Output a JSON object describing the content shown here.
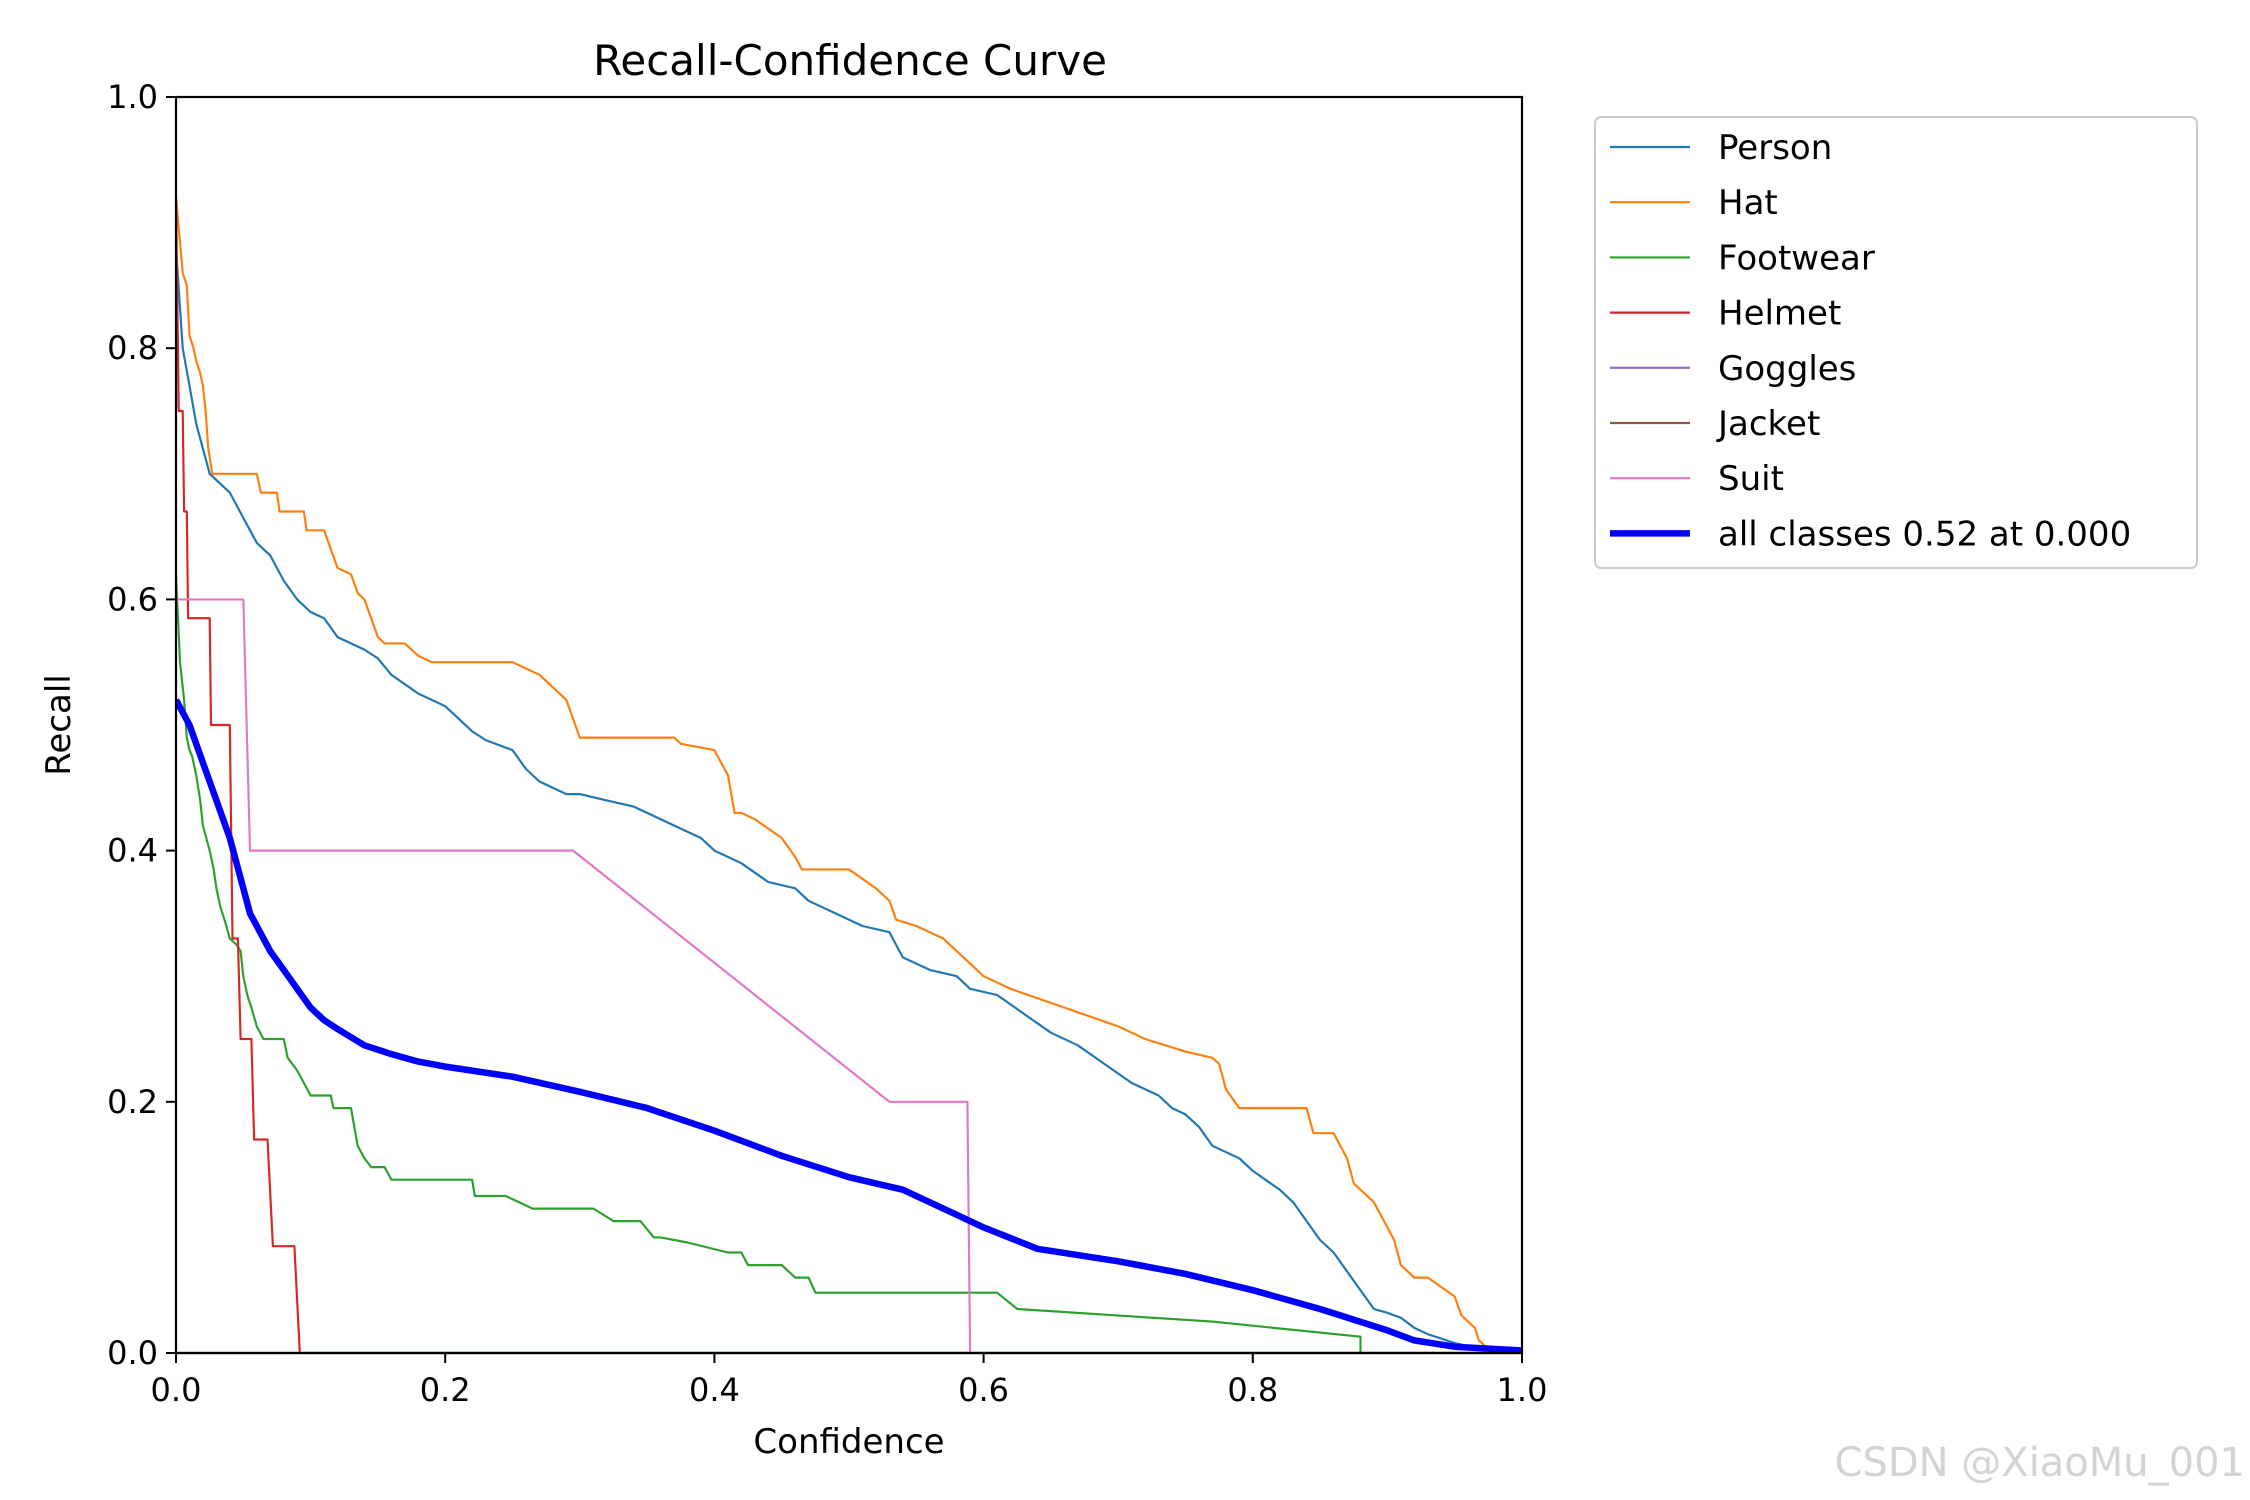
{
  "watermark": "CSDN @XiaoMu_001",
  "chart_data": {
    "type": "line",
    "title": "Recall-Confidence Curve",
    "xlabel": "Confidence",
    "ylabel": "Recall",
    "xlim": [
      0,
      1
    ],
    "ylim": [
      0,
      1
    ],
    "xticks": [
      "0.0",
      "0.2",
      "0.4",
      "0.6",
      "0.8",
      "1.0"
    ],
    "yticks": [
      "0.0",
      "0.2",
      "0.4",
      "0.6",
      "0.8",
      "1.0"
    ],
    "grid": false,
    "legend_position": "outside-right",
    "series": [
      {
        "name": "Person",
        "color": "#1f77b4",
        "width": 1.5,
        "points": [
          [
            0,
            0.88
          ],
          [
            0.005,
            0.8
          ],
          [
            0.01,
            0.77
          ],
          [
            0.015,
            0.74
          ],
          [
            0.02,
            0.72
          ],
          [
            0.025,
            0.7
          ],
          [
            0.03,
            0.695
          ],
          [
            0.04,
            0.685
          ],
          [
            0.05,
            0.665
          ],
          [
            0.06,
            0.645
          ],
          [
            0.07,
            0.635
          ],
          [
            0.08,
            0.615
          ],
          [
            0.09,
            0.6
          ],
          [
            0.1,
            0.59
          ],
          [
            0.11,
            0.585
          ],
          [
            0.12,
            0.57
          ],
          [
            0.14,
            0.56
          ],
          [
            0.15,
            0.553
          ],
          [
            0.16,
            0.54
          ],
          [
            0.18,
            0.525
          ],
          [
            0.2,
            0.515
          ],
          [
            0.21,
            0.505
          ],
          [
            0.22,
            0.495
          ],
          [
            0.23,
            0.488
          ],
          [
            0.25,
            0.48
          ],
          [
            0.26,
            0.465
          ],
          [
            0.27,
            0.455
          ],
          [
            0.29,
            0.445
          ],
          [
            0.3,
            0.445
          ],
          [
            0.32,
            0.44
          ],
          [
            0.34,
            0.435
          ],
          [
            0.35,
            0.43
          ],
          [
            0.37,
            0.42
          ],
          [
            0.39,
            0.41
          ],
          [
            0.4,
            0.4
          ],
          [
            0.42,
            0.39
          ],
          [
            0.44,
            0.375
          ],
          [
            0.46,
            0.37
          ],
          [
            0.47,
            0.36
          ],
          [
            0.49,
            0.35
          ],
          [
            0.51,
            0.34
          ],
          [
            0.53,
            0.335
          ],
          [
            0.54,
            0.315
          ],
          [
            0.56,
            0.305
          ],
          [
            0.58,
            0.3
          ],
          [
            0.59,
            0.29
          ],
          [
            0.61,
            0.285
          ],
          [
            0.63,
            0.27
          ],
          [
            0.65,
            0.255
          ],
          [
            0.67,
            0.245
          ],
          [
            0.69,
            0.23
          ],
          [
            0.71,
            0.215
          ],
          [
            0.73,
            0.205
          ],
          [
            0.74,
            0.195
          ],
          [
            0.75,
            0.19
          ],
          [
            0.76,
            0.18
          ],
          [
            0.77,
            0.165
          ],
          [
            0.79,
            0.155
          ],
          [
            0.8,
            0.145
          ],
          [
            0.82,
            0.13
          ],
          [
            0.83,
            0.12
          ],
          [
            0.84,
            0.105
          ],
          [
            0.85,
            0.09
          ],
          [
            0.86,
            0.08
          ],
          [
            0.87,
            0.065
          ],
          [
            0.88,
            0.05
          ],
          [
            0.89,
            0.035
          ],
          [
            0.9,
            0.032
          ],
          [
            0.91,
            0.028
          ],
          [
            0.92,
            0.02
          ],
          [
            0.93,
            0.015
          ],
          [
            0.95,
            0.008
          ],
          [
            0.97,
            0.003
          ],
          [
            1.0,
            0.0
          ]
        ]
      },
      {
        "name": "Hat",
        "color": "#ff7f0e",
        "width": 1.5,
        "points": [
          [
            0,
            0.92
          ],
          [
            0.005,
            0.86
          ],
          [
            0.008,
            0.85
          ],
          [
            0.01,
            0.81
          ],
          [
            0.013,
            0.8
          ],
          [
            0.015,
            0.79
          ],
          [
            0.018,
            0.78
          ],
          [
            0.02,
            0.77
          ],
          [
            0.022,
            0.75
          ],
          [
            0.024,
            0.72
          ],
          [
            0.027,
            0.7
          ],
          [
            0.06,
            0.7
          ],
          [
            0.063,
            0.685
          ],
          [
            0.075,
            0.685
          ],
          [
            0.077,
            0.67
          ],
          [
            0.095,
            0.67
          ],
          [
            0.097,
            0.655
          ],
          [
            0.11,
            0.655
          ],
          [
            0.115,
            0.64
          ],
          [
            0.12,
            0.625
          ],
          [
            0.13,
            0.62
          ],
          [
            0.135,
            0.605
          ],
          [
            0.14,
            0.6
          ],
          [
            0.15,
            0.57
          ],
          [
            0.155,
            0.565
          ],
          [
            0.17,
            0.565
          ],
          [
            0.175,
            0.56
          ],
          [
            0.18,
            0.555
          ],
          [
            0.19,
            0.55
          ],
          [
            0.25,
            0.55
          ],
          [
            0.27,
            0.54
          ],
          [
            0.28,
            0.53
          ],
          [
            0.29,
            0.52
          ],
          [
            0.3,
            0.49
          ],
          [
            0.37,
            0.49
          ],
          [
            0.375,
            0.485
          ],
          [
            0.4,
            0.48
          ],
          [
            0.405,
            0.47
          ],
          [
            0.41,
            0.46
          ],
          [
            0.415,
            0.43
          ],
          [
            0.42,
            0.43
          ],
          [
            0.43,
            0.425
          ],
          [
            0.45,
            0.41
          ],
          [
            0.46,
            0.395
          ],
          [
            0.465,
            0.385
          ],
          [
            0.5,
            0.385
          ],
          [
            0.52,
            0.37
          ],
          [
            0.53,
            0.36
          ],
          [
            0.535,
            0.345
          ],
          [
            0.55,
            0.34
          ],
          [
            0.57,
            0.33
          ],
          [
            0.58,
            0.32
          ],
          [
            0.59,
            0.31
          ],
          [
            0.6,
            0.3
          ],
          [
            0.62,
            0.29
          ],
          [
            0.66,
            0.275
          ],
          [
            0.7,
            0.26
          ],
          [
            0.72,
            0.25
          ],
          [
            0.75,
            0.24
          ],
          [
            0.77,
            0.235
          ],
          [
            0.775,
            0.23
          ],
          [
            0.78,
            0.21
          ],
          [
            0.79,
            0.195
          ],
          [
            0.84,
            0.195
          ],
          [
            0.845,
            0.175
          ],
          [
            0.86,
            0.175
          ],
          [
            0.87,
            0.155
          ],
          [
            0.875,
            0.135
          ],
          [
            0.88,
            0.13
          ],
          [
            0.89,
            0.12
          ],
          [
            0.9,
            0.1
          ],
          [
            0.905,
            0.09
          ],
          [
            0.91,
            0.07
          ],
          [
            0.92,
            0.06
          ],
          [
            0.93,
            0.06
          ],
          [
            0.95,
            0.045
          ],
          [
            0.955,
            0.03
          ],
          [
            0.965,
            0.02
          ],
          [
            0.968,
            0.01
          ],
          [
            0.975,
            0.003
          ]
        ]
      },
      {
        "name": "Footwear",
        "color": "#2ca02c",
        "width": 1.5,
        "points": [
          [
            0,
            0.62
          ],
          [
            0.003,
            0.55
          ],
          [
            0.006,
            0.52
          ],
          [
            0.008,
            0.49
          ],
          [
            0.01,
            0.48
          ],
          [
            0.012,
            0.475
          ],
          [
            0.015,
            0.46
          ],
          [
            0.018,
            0.44
          ],
          [
            0.02,
            0.42
          ],
          [
            0.025,
            0.4
          ],
          [
            0.028,
            0.385
          ],
          [
            0.03,
            0.37
          ],
          [
            0.033,
            0.355
          ],
          [
            0.036,
            0.345
          ],
          [
            0.04,
            0.33
          ],
          [
            0.045,
            0.325
          ],
          [
            0.048,
            0.32
          ],
          [
            0.05,
            0.3
          ],
          [
            0.053,
            0.285
          ],
          [
            0.056,
            0.275
          ],
          [
            0.06,
            0.26
          ],
          [
            0.065,
            0.25
          ],
          [
            0.08,
            0.25
          ],
          [
            0.083,
            0.235
          ],
          [
            0.09,
            0.225
          ],
          [
            0.095,
            0.215
          ],
          [
            0.1,
            0.205
          ],
          [
            0.115,
            0.205
          ],
          [
            0.117,
            0.195
          ],
          [
            0.13,
            0.195
          ],
          [
            0.135,
            0.165
          ],
          [
            0.14,
            0.155
          ],
          [
            0.145,
            0.148
          ],
          [
            0.155,
            0.148
          ],
          [
            0.16,
            0.138
          ],
          [
            0.22,
            0.138
          ],
          [
            0.222,
            0.125
          ],
          [
            0.245,
            0.125
          ],
          [
            0.265,
            0.115
          ],
          [
            0.31,
            0.115
          ],
          [
            0.325,
            0.105
          ],
          [
            0.345,
            0.105
          ],
          [
            0.355,
            0.092
          ],
          [
            0.36,
            0.092
          ],
          [
            0.38,
            0.088
          ],
          [
            0.41,
            0.08
          ],
          [
            0.42,
            0.08
          ],
          [
            0.425,
            0.07
          ],
          [
            0.45,
            0.07
          ],
          [
            0.46,
            0.06
          ],
          [
            0.47,
            0.06
          ],
          [
            0.475,
            0.048
          ],
          [
            0.61,
            0.048
          ],
          [
            0.625,
            0.035
          ],
          [
            0.77,
            0.025
          ],
          [
            0.88,
            0.013
          ],
          [
            0.88,
            0.0
          ]
        ]
      },
      {
        "name": "Helmet",
        "color": "#d62728",
        "width": 1.5,
        "points": [
          [
            0,
            0.92
          ],
          [
            0.002,
            0.75
          ],
          [
            0.005,
            0.75
          ],
          [
            0.006,
            0.67
          ],
          [
            0.008,
            0.67
          ],
          [
            0.009,
            0.585
          ],
          [
            0.025,
            0.585
          ],
          [
            0.026,
            0.5
          ],
          [
            0.04,
            0.5
          ],
          [
            0.042,
            0.33
          ],
          [
            0.046,
            0.33
          ],
          [
            0.048,
            0.25
          ],
          [
            0.056,
            0.25
          ],
          [
            0.058,
            0.17
          ],
          [
            0.068,
            0.17
          ],
          [
            0.072,
            0.085
          ],
          [
            0.088,
            0.085
          ],
          [
            0.092,
            0.0
          ],
          [
            1.0,
            0.0
          ]
        ]
      },
      {
        "name": "Goggles",
        "color": "#9467bd",
        "width": 1.5,
        "points": [
          [
            0,
            0.0
          ],
          [
            1.0,
            0.0
          ]
        ]
      },
      {
        "name": "Jacket",
        "color": "#8c564b",
        "width": 1.5,
        "points": [
          [
            0,
            0.0
          ],
          [
            1.0,
            0.0
          ]
        ]
      },
      {
        "name": "Suit",
        "color": "#e377c2",
        "width": 1.5,
        "points": [
          [
            0,
            0.6
          ],
          [
            0.05,
            0.6
          ],
          [
            0.055,
            0.4
          ],
          [
            0.295,
            0.4
          ],
          [
            0.53,
            0.2
          ],
          [
            0.588,
            0.2
          ],
          [
            0.59,
            0.0
          ]
        ]
      },
      {
        "name": "all classes 0.52 at 0.000",
        "color": "#0000ff",
        "width": 4.5,
        "points": [
          [
            0,
            0.52
          ],
          [
            0.01,
            0.5
          ],
          [
            0.02,
            0.47
          ],
          [
            0.03,
            0.44
          ],
          [
            0.04,
            0.41
          ],
          [
            0.05,
            0.37
          ],
          [
            0.055,
            0.35
          ],
          [
            0.07,
            0.32
          ],
          [
            0.08,
            0.305
          ],
          [
            0.09,
            0.29
          ],
          [
            0.1,
            0.275
          ],
          [
            0.11,
            0.265
          ],
          [
            0.12,
            0.258
          ],
          [
            0.14,
            0.245
          ],
          [
            0.16,
            0.238
          ],
          [
            0.18,
            0.232
          ],
          [
            0.2,
            0.228
          ],
          [
            0.25,
            0.22
          ],
          [
            0.3,
            0.208
          ],
          [
            0.35,
            0.195
          ],
          [
            0.4,
            0.177
          ],
          [
            0.45,
            0.157
          ],
          [
            0.5,
            0.14
          ],
          [
            0.54,
            0.13
          ],
          [
            0.58,
            0.11
          ],
          [
            0.6,
            0.1
          ],
          [
            0.64,
            0.083
          ],
          [
            0.7,
            0.073
          ],
          [
            0.75,
            0.063
          ],
          [
            0.8,
            0.05
          ],
          [
            0.85,
            0.035
          ],
          [
            0.9,
            0.018
          ],
          [
            0.92,
            0.01
          ],
          [
            0.95,
            0.005
          ],
          [
            1.0,
            0.002
          ]
        ]
      }
    ]
  }
}
